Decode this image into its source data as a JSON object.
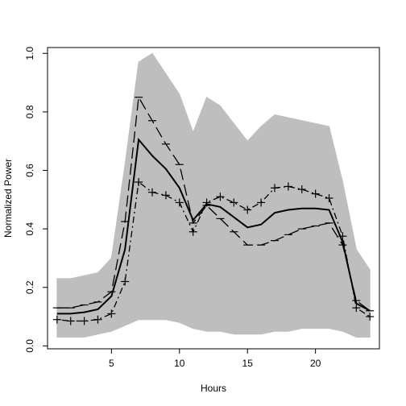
{
  "chart_data": {
    "type": "line",
    "title": "",
    "xlabel": "Hours",
    "ylabel": "Normalized Power",
    "xlim": [
      0.3,
      24.7
    ],
    "ylim": [
      -0.01,
      1.02
    ],
    "xticks": [
      5,
      10,
      15,
      20
    ],
    "yticks": [
      0.0,
      0.2,
      0.4,
      0.6,
      0.8,
      1.0
    ],
    "ytick_labels": [
      "0.0",
      "0.2",
      "0.4",
      "0.6",
      "0.8",
      "1.0"
    ],
    "grid": false,
    "legend": "none",
    "background_band": {
      "color": "#bebebe",
      "x": [
        1,
        2,
        3,
        4,
        5,
        6,
        7,
        8,
        9,
        10,
        11,
        12,
        13,
        14,
        15,
        16,
        17,
        18,
        19,
        20,
        21,
        22,
        23,
        24
      ],
      "upper": [
        0.23,
        0.23,
        0.24,
        0.25,
        0.3,
        0.62,
        0.97,
        1.0,
        0.93,
        0.86,
        0.73,
        0.85,
        0.82,
        0.76,
        0.7,
        0.75,
        0.79,
        0.78,
        0.77,
        0.76,
        0.75,
        0.56,
        0.33,
        0.26
      ],
      "lower": [
        0.03,
        0.03,
        0.03,
        0.04,
        0.05,
        0.07,
        0.09,
        0.09,
        0.09,
        0.08,
        0.06,
        0.05,
        0.05,
        0.04,
        0.04,
        0.04,
        0.05,
        0.05,
        0.06,
        0.06,
        0.06,
        0.05,
        0.03,
        0.03
      ]
    },
    "series": [
      {
        "style": "solid",
        "color": "#000000",
        "x": [
          1,
          2,
          3,
          4,
          5,
          6,
          7,
          8,
          9,
          10,
          11,
          12,
          13,
          14,
          15,
          16,
          17,
          18,
          19,
          20,
          21,
          22,
          23,
          24
        ],
        "values": [
          0.11,
          0.11,
          0.115,
          0.125,
          0.17,
          0.33,
          0.705,
          0.65,
          0.605,
          0.54,
          0.43,
          0.485,
          0.475,
          0.44,
          0.405,
          0.415,
          0.455,
          0.465,
          0.47,
          0.47,
          0.465,
          0.355,
          0.145,
          0.12
        ]
      },
      {
        "style": "dashed",
        "marker": "−",
        "color": "#000000",
        "x": [
          1,
          2,
          3,
          4,
          5,
          6,
          7,
          8,
          9,
          10,
          11,
          12,
          13,
          14,
          15,
          16,
          17,
          18,
          19,
          20,
          21,
          22,
          23,
          24
        ],
        "values": [
          0.13,
          0.13,
          0.14,
          0.15,
          0.185,
          0.425,
          0.85,
          0.77,
          0.69,
          0.62,
          0.42,
          0.48,
          0.435,
          0.39,
          0.345,
          0.345,
          0.36,
          0.38,
          0.4,
          0.41,
          0.42,
          0.345,
          0.155,
          0.12
        ]
      },
      {
        "style": "dotdash",
        "marker": "+",
        "color": "#000000",
        "x": [
          1,
          2,
          3,
          4,
          5,
          6,
          7,
          8,
          9,
          10,
          11,
          12,
          13,
          14,
          15,
          16,
          17,
          18,
          19,
          20,
          21,
          22,
          23,
          24
        ],
        "values": [
          0.09,
          0.085,
          0.085,
          0.09,
          0.11,
          0.22,
          0.56,
          0.525,
          0.515,
          0.49,
          0.39,
          0.49,
          0.51,
          0.49,
          0.465,
          0.49,
          0.54,
          0.545,
          0.535,
          0.52,
          0.505,
          0.375,
          0.13,
          0.1
        ]
      }
    ]
  }
}
